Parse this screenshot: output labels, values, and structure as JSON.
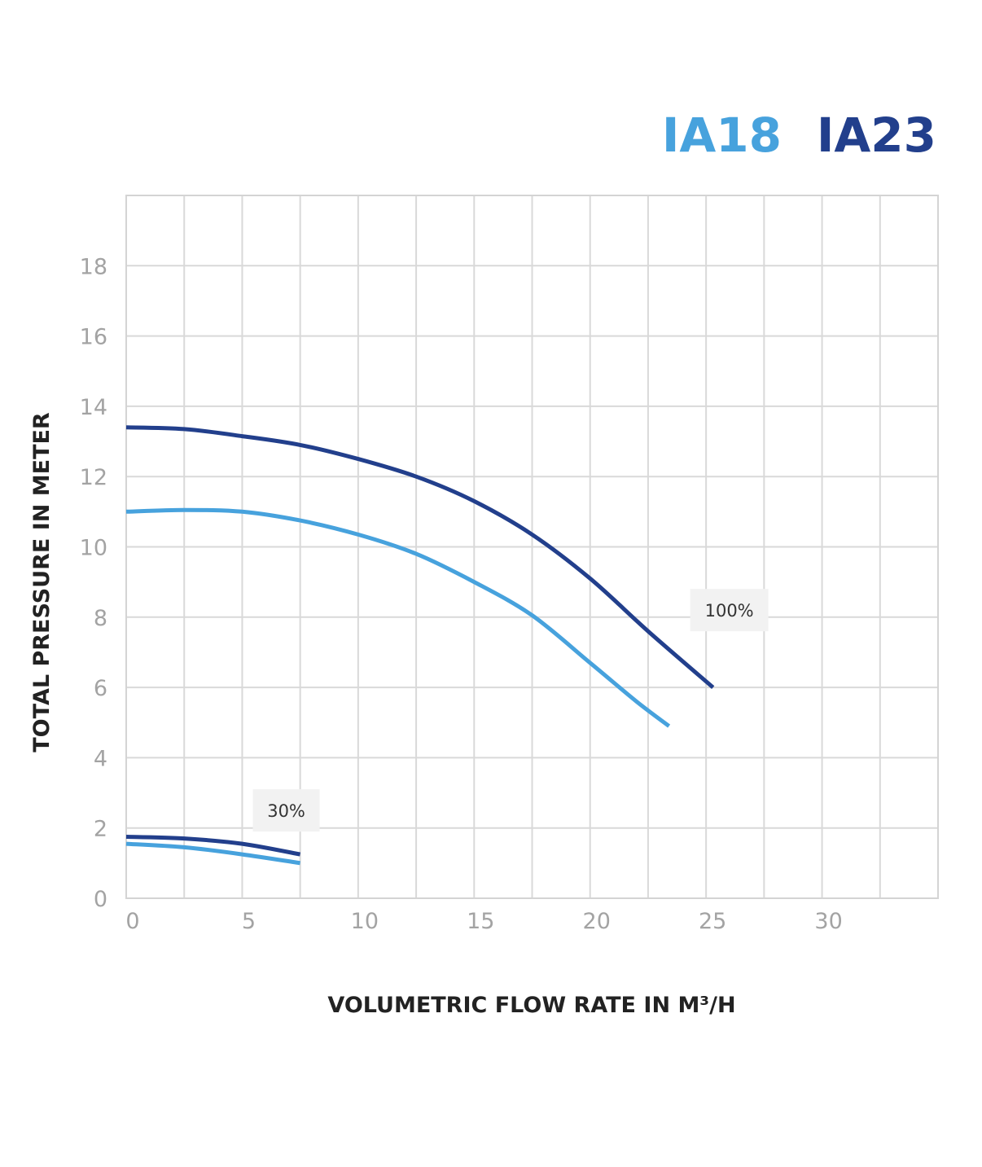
{
  "chart_data": {
    "type": "line",
    "title": "",
    "xlabel": "VOLUMETRIC FLOW RATE IN M³/H",
    "ylabel": "TOTAL PRESSURE IN METER",
    "xlim": [
      0,
      35
    ],
    "ylim": [
      0,
      20
    ],
    "x_ticks": [
      0,
      5,
      10,
      15,
      20,
      25,
      30
    ],
    "y_ticks": [
      0,
      2,
      4,
      6,
      8,
      10,
      12,
      14,
      16,
      18
    ],
    "x_grid_step": 2.5,
    "y_grid_step": 2,
    "grid": true,
    "legend_position": "top-right",
    "legend": [
      {
        "label": "IA18",
        "color": "#47a2dd"
      },
      {
        "label": "IA23",
        "color": "#223f8c"
      }
    ],
    "series": [
      {
        "name": "IA23",
        "level": "100%",
        "color": "#223f8c",
        "x": [
          0,
          2.5,
          5,
          7.5,
          10,
          12.5,
          15,
          17.5,
          20,
          22.5,
          25.3
        ],
        "y": [
          13.4,
          13.35,
          13.15,
          12.9,
          12.5,
          12.0,
          11.3,
          10.35,
          9.1,
          7.6,
          6.0
        ]
      },
      {
        "name": "IA18",
        "level": "100%",
        "color": "#47a2dd",
        "x": [
          0,
          2.5,
          5,
          7.5,
          10,
          12.5,
          15,
          17.5,
          20,
          22,
          23.4
        ],
        "y": [
          11.0,
          11.05,
          11.0,
          10.75,
          10.35,
          9.8,
          9.0,
          8.05,
          6.7,
          5.6,
          4.9
        ]
      },
      {
        "name": "IA23",
        "level": "30%",
        "color": "#223f8c",
        "x": [
          0,
          2.5,
          5,
          7.5
        ],
        "y": [
          1.75,
          1.7,
          1.55,
          1.25
        ]
      },
      {
        "name": "IA18",
        "level": "30%",
        "color": "#47a2dd",
        "x": [
          0,
          2.5,
          5,
          7.5
        ],
        "y": [
          1.55,
          1.45,
          1.25,
          1.0
        ]
      }
    ],
    "annotations": [
      {
        "text": "100%",
        "x": 26,
        "y": 8.2
      },
      {
        "text": "30%",
        "x": 6.9,
        "y": 2.5
      }
    ]
  }
}
